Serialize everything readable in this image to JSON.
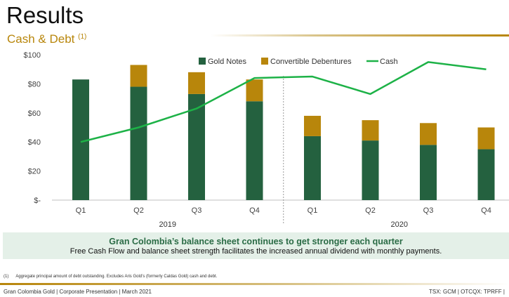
{
  "header": {
    "title": "Results",
    "subtitle": "Cash & Debt",
    "subtitle_note": "(1)"
  },
  "chart_data": {
    "type": "bar",
    "categories": [
      "Q1",
      "Q2",
      "Q3",
      "Q4",
      "Q1",
      "Q2",
      "Q3",
      "Q4"
    ],
    "groups": [
      {
        "label": "2019",
        "categories": [
          0,
          1,
          2,
          3
        ]
      },
      {
        "label": "2020",
        "categories": [
          4,
          5,
          6,
          7
        ]
      }
    ],
    "series": [
      {
        "name": "Gold Notes",
        "kind": "stacked-bar",
        "color": "#24613f",
        "values": [
          83,
          78,
          73,
          68,
          44,
          41,
          38,
          35
        ]
      },
      {
        "name": "Convertible Debentures",
        "kind": "stacked-bar",
        "color": "#b8860b",
        "values": [
          0,
          15,
          15,
          15,
          14,
          14,
          15,
          15
        ]
      },
      {
        "name": "Cash",
        "kind": "line",
        "color": "#1db247",
        "values": [
          40,
          50,
          63,
          84,
          85,
          73,
          95,
          90
        ]
      }
    ],
    "y_ticks": [
      "$100",
      "$80",
      "$60",
      "$40",
      "$20",
      "$-"
    ],
    "ylim": [
      0,
      100
    ],
    "legend_position": "top-center",
    "grid": false
  },
  "banner": {
    "title": "Gran Colombia’s balance sheet continues to get stronger each quarter",
    "text": "Free Cash Flow and balance sheet strength facilitates the increased annual dividend with monthly payments."
  },
  "footnote": {
    "marker": "(1)",
    "text": "Aggregate principal amount of debt outstanding. Excludes Aris Gold’s (formerly Caldas Gold) cash and debt."
  },
  "footer": {
    "left": "Gran Colombia Gold  |  Corporate Presentation  |  March 2021",
    "right": "TSX: GCM  |  OTCQX: TPRFF  |"
  }
}
